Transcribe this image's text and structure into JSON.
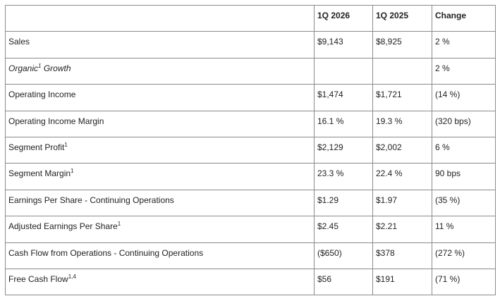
{
  "table": {
    "header": [
      "1Q 2026",
      "1Q 2025",
      "Change"
    ],
    "rows": [
      {
        "label": "Sales",
        "values": [
          "$9,143",
          "$8,925",
          "2 %"
        ]
      },
      {
        "label": "Organic",
        "note": "1",
        "suffix": " Growth",
        "italic": true,
        "values": [
          null,
          null,
          "2 %"
        ]
      },
      {
        "label": "Operating Income",
        "values": [
          "$1,474",
          "$1,721",
          "(14 %)"
        ]
      },
      {
        "label": "Operating Income Margin",
        "values": [
          "16.1 %",
          "19.3 %",
          "(320 bps)"
        ]
      },
      {
        "label": "Segment Profit",
        "note": "1",
        "values": [
          "$2,129",
          "$2,002",
          "6 %"
        ]
      },
      {
        "label": "Segment Margin",
        "note": "1",
        "values": [
          "23.3 %",
          "22.4 %",
          "90 bps"
        ]
      },
      {
        "label": "Earnings Per Share - Continuing Operations",
        "values": [
          "$1.29",
          "$1.97",
          "(35 %)"
        ]
      },
      {
        "label": "Adjusted Earnings Per Share",
        "note": "1",
        "values": [
          "$2.45",
          "$2.21",
          "11 %"
        ]
      },
      {
        "label": "Cash Flow from Operations - Continuing Operations",
        "values": [
          "($650)",
          "$378",
          "(272 %)"
        ]
      },
      {
        "label": "Free Cash Flow",
        "note": "1,4",
        "values": [
          "$56",
          "$191",
          "(71 %)"
        ]
      }
    ]
  }
}
